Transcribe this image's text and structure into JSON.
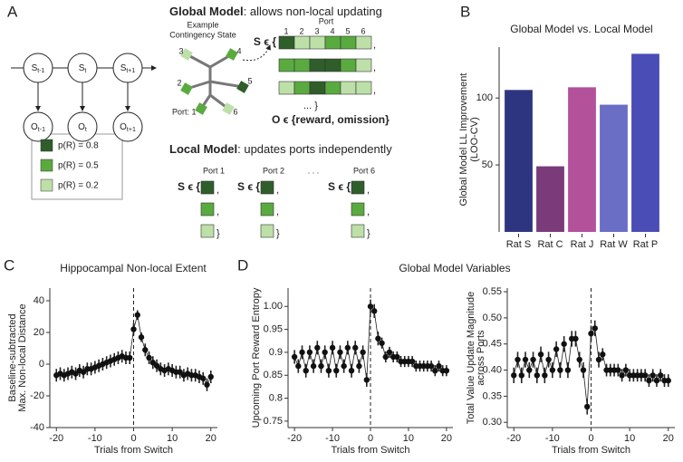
{
  "panel_labels": [
    "A",
    "B",
    "C",
    "D"
  ],
  "diagram": {
    "hmm": {
      "states": [
        {
          "label": "S",
          "sub": "t-1"
        },
        {
          "label": "S",
          "sub": "t"
        },
        {
          "label": "S",
          "sub": "t+1"
        }
      ],
      "observations": [
        {
          "label": "O",
          "sub": "t-1"
        },
        {
          "label": "O",
          "sub": "t"
        },
        {
          "label": "O",
          "sub": "t+1"
        }
      ]
    },
    "legend": [
      "p(R) = 0.8",
      "p(R) = 0.5",
      "p(R) = 0.2"
    ],
    "global": {
      "title_bold": "Global Model",
      "title_rest": ": allows non-local updating",
      "example": [
        "Example",
        "Contingency State"
      ],
      "port_header": "Port",
      "port_numbers": [
        "1",
        "2",
        "3",
        "4",
        "5",
        "6"
      ],
      "graph_ports": [
        "Port: 1",
        "2",
        "3",
        "4",
        "5",
        "6"
      ],
      "set_open": "S ϵ {",
      "comma": ",",
      "set_close": "... }",
      "obs": "O ϵ {reward, omission}"
    },
    "local": {
      "title_bold": "Local Model",
      "title_rest": ": updates ports independently",
      "ports": [
        "Port 1",
        "Port 2",
        "Port 6"
      ],
      "ellipsis": ". . .",
      "set_open": "S ϵ {",
      "comma": ",",
      "close": "}"
    }
  },
  "chart_data": [
    {
      "type": "bar",
      "title": "Global Model vs. Local Model",
      "ylabel": [
        "Global Model LL Improvement",
        "(LOO-CV)"
      ],
      "categories": [
        "Rat S",
        "Rat C",
        "Rat J",
        "Rat W",
        "Rat P"
      ],
      "values": [
        106,
        49,
        108,
        95,
        133
      ],
      "colors": [
        "#2e3580",
        "#7b3a7a",
        "#b4519b",
        "#6a6ec4",
        "#4a4db5"
      ],
      "ylim": [
        0,
        138
      ],
      "yticks": [
        50,
        100
      ]
    },
    {
      "type": "line",
      "title": "Hippocampal Non-local Extent",
      "xlabel": "Trials from Switch",
      "ylabel": [
        "Baseline-subtracted",
        "Max. Non-local Distance"
      ],
      "x": [
        -20,
        -19,
        -18,
        -17,
        -16,
        -15,
        -14,
        -13,
        -12,
        -11,
        -10,
        -9,
        -8,
        -7,
        -6,
        -5,
        -4,
        -3,
        -2,
        -1,
        0,
        1,
        2,
        3,
        4,
        5,
        6,
        7,
        8,
        9,
        10,
        11,
        12,
        13,
        14,
        15,
        16,
        17,
        18,
        19,
        20
      ],
      "values": [
        -7,
        -6,
        -7,
        -6,
        -5,
        -6,
        -4,
        -5,
        -3,
        -3,
        -2,
        -1,
        0,
        1,
        2,
        3,
        4,
        5,
        4,
        4,
        22,
        31,
        17,
        9,
        4,
        1,
        -1,
        -3,
        -4,
        -3,
        -4,
        -5,
        -5,
        -7,
        -6,
        -7,
        -7,
        -8,
        -9,
        -13,
        -8
      ],
      "errors": [
        4,
        4,
        4,
        4,
        4,
        4,
        4,
        4,
        4,
        4,
        4,
        4,
        4,
        4,
        4,
        4,
        4,
        4,
        4,
        4,
        4,
        3,
        3,
        4,
        4,
        4,
        4,
        4,
        4,
        4,
        4,
        4,
        4,
        4,
        4,
        4,
        4,
        4,
        4,
        4,
        4
      ],
      "vline": 0,
      "xlim": [
        -21.7,
        21.7
      ],
      "ylim": [
        -40,
        48
      ],
      "xticks": [
        -20,
        -10,
        0,
        10,
        20
      ],
      "yticks": [
        -40,
        -20,
        0,
        20,
        40
      ]
    },
    {
      "type": "line",
      "title": "Global Model Variables",
      "xlabel": "Trials from Switch",
      "ylabel": [
        "Upcoming Port Reward Entropy"
      ],
      "x": [
        -20,
        -19,
        -18,
        -17,
        -16,
        -15,
        -14,
        -13,
        -12,
        -11,
        -10,
        -9,
        -8,
        -7,
        -6,
        -5,
        -4,
        -3,
        -2,
        -1,
        0,
        1,
        2,
        3,
        4,
        5,
        6,
        7,
        8,
        9,
        10,
        11,
        12,
        13,
        14,
        15,
        16,
        17,
        18,
        19,
        20
      ],
      "values": [
        0.89,
        0.87,
        0.9,
        0.86,
        0.9,
        0.87,
        0.91,
        0.87,
        0.9,
        0.86,
        0.91,
        0.86,
        0.9,
        0.87,
        0.91,
        0.86,
        0.91,
        0.87,
        0.9,
        0.84,
        1.0,
        0.99,
        0.93,
        0.92,
        0.89,
        0.9,
        0.89,
        0.89,
        0.88,
        0.88,
        0.88,
        0.88,
        0.87,
        0.87,
        0.87,
        0.87,
        0.87,
        0.86,
        0.87,
        0.86,
        0.86
      ],
      "errors": [
        0.015,
        0.015,
        0.015,
        0.015,
        0.015,
        0.015,
        0.015,
        0.015,
        0.015,
        0.015,
        0.015,
        0.015,
        0.015,
        0.015,
        0.015,
        0.015,
        0.015,
        0.015,
        0.015,
        0.015,
        0.015,
        0.015,
        0.015,
        0.012,
        0.012,
        0.012,
        0.012,
        0.012,
        0.012,
        0.012,
        0.012,
        0.012,
        0.012,
        0.012,
        0.012,
        0.012,
        0.012,
        0.012,
        0.012,
        0.012,
        0.012
      ],
      "vline": 0,
      "xlim": [
        -21.7,
        21.7
      ],
      "ylim": [
        0.736,
        1.04
      ],
      "xticks": [
        -20,
        -10,
        0,
        10,
        20
      ],
      "yticks": [
        0.75,
        0.8,
        0.85,
        0.9,
        0.95,
        {
          "value": 1,
          "label": "1.00"
        }
      ]
    },
    {
      "type": "line",
      "xlabel": "Trials from Switch",
      "ylabel": [
        "Total Value Update Magnitude",
        "across Ports"
      ],
      "x": [
        -20,
        -19,
        -18,
        -17,
        -16,
        -15,
        -14,
        -13,
        -12,
        -11,
        -10,
        -9,
        -8,
        -7,
        -6,
        -5,
        -4,
        -3,
        -2,
        -1,
        0,
        1,
        2,
        3,
        4,
        5,
        6,
        7,
        8,
        9,
        10,
        11,
        12,
        13,
        14,
        15,
        16,
        17,
        18,
        19,
        20
      ],
      "values": [
        0.39,
        0.42,
        0.39,
        0.42,
        0.4,
        0.42,
        0.39,
        0.43,
        0.39,
        0.42,
        0.4,
        0.44,
        0.4,
        0.45,
        0.4,
        0.46,
        0.46,
        0.42,
        0.4,
        0.33,
        0.47,
        0.48,
        0.42,
        0.43,
        0.4,
        0.4,
        0.4,
        0.4,
        0.39,
        0.4,
        0.39,
        0.39,
        0.39,
        0.39,
        0.39,
        0.38,
        0.39,
        0.38,
        0.39,
        0.38,
        0.38
      ],
      "errors": [
        0.015,
        0.015,
        0.015,
        0.015,
        0.015,
        0.015,
        0.015,
        0.015,
        0.015,
        0.015,
        0.015,
        0.015,
        0.015,
        0.015,
        0.015,
        0.015,
        0.015,
        0.015,
        0.015,
        0.015,
        0.015,
        0.015,
        0.015,
        0.012,
        0.012,
        0.012,
        0.012,
        0.012,
        0.012,
        0.012,
        0.012,
        0.012,
        0.012,
        0.012,
        0.012,
        0.012,
        0.012,
        0.012,
        0.012,
        0.012,
        0.012
      ],
      "vline": 0,
      "xlim": [
        -21.7,
        21.7
      ],
      "ylim": [
        0.29,
        0.557
      ],
      "xticks": [
        -20,
        -10,
        0,
        10,
        20
      ],
      "yticks": [
        {
          "value": 0.3,
          "label": "0.30"
        },
        0.35,
        {
          "value": 0.4,
          "label": "0.40"
        },
        0.45,
        {
          "value": 0.5,
          "label": "0.50"
        },
        0.55
      ]
    }
  ]
}
